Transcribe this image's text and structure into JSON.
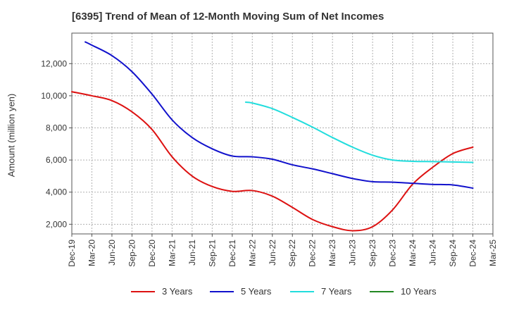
{
  "chart_data": {
    "type": "line",
    "title": "[6395]  Trend of Mean of 12-Month Moving Sum of Net Incomes",
    "ylabel": "Amount (million yen)",
    "xlabel": "",
    "ylim": [
      1400,
      13900
    ],
    "yticks": [
      2000,
      4000,
      6000,
      8000,
      10000,
      12000
    ],
    "ytick_labels": [
      "2,000",
      "4,000",
      "6,000",
      "8,000",
      "10,000",
      "12,000"
    ],
    "x_categories": [
      "Dec-19",
      "Mar-20",
      "Jun-20",
      "Sep-20",
      "Dec-20",
      "Mar-21",
      "Jun-21",
      "Sep-21",
      "Dec-21",
      "Mar-22",
      "Jun-22",
      "Sep-22",
      "Dec-22",
      "Mar-23",
      "Jun-23",
      "Sep-23",
      "Dec-23",
      "Mar-24",
      "Jun-24",
      "Sep-24",
      "Dec-24",
      "Mar-25"
    ],
    "grid": true,
    "legend_position": "bottom",
    "series": [
      {
        "name": "3 Years",
        "color": "#dd1111",
        "points": [
          [
            0,
            10250
          ],
          [
            1,
            10000
          ],
          [
            2,
            9700
          ],
          [
            3,
            9000
          ],
          [
            4,
            7900
          ],
          [
            5,
            6200
          ],
          [
            6,
            5000
          ],
          [
            7,
            4350
          ],
          [
            8,
            4050
          ],
          [
            9,
            4100
          ],
          [
            10,
            3750
          ],
          [
            11,
            3050
          ],
          [
            12,
            2300
          ],
          [
            13,
            1850
          ],
          [
            14,
            1600
          ],
          [
            15,
            1850
          ],
          [
            16,
            2900
          ],
          [
            17,
            4500
          ],
          [
            18,
            5550
          ],
          [
            19,
            6400
          ],
          [
            20,
            6800
          ]
        ]
      },
      {
        "name": "5 Years",
        "color": "#1111cc",
        "points": [
          [
            0.67,
            13350
          ],
          [
            1,
            13150
          ],
          [
            2,
            12500
          ],
          [
            3,
            11500
          ],
          [
            4,
            10100
          ],
          [
            5,
            8500
          ],
          [
            6,
            7400
          ],
          [
            7,
            6700
          ],
          [
            8,
            6250
          ],
          [
            9,
            6200
          ],
          [
            10,
            6050
          ],
          [
            11,
            5700
          ],
          [
            12,
            5450
          ],
          [
            13,
            5150
          ],
          [
            14,
            4850
          ],
          [
            15,
            4650
          ],
          [
            16,
            4620
          ],
          [
            17,
            4550
          ],
          [
            18,
            4480
          ],
          [
            19,
            4450
          ],
          [
            20,
            4250
          ]
        ]
      },
      {
        "name": "7 Years",
        "color": "#22dddd",
        "points": [
          [
            8.67,
            9600
          ],
          [
            9,
            9550
          ],
          [
            10,
            9200
          ],
          [
            11,
            8650
          ],
          [
            12,
            8050
          ],
          [
            13,
            7400
          ],
          [
            14,
            6800
          ],
          [
            15,
            6300
          ],
          [
            16,
            6000
          ],
          [
            17,
            5920
          ],
          [
            18,
            5900
          ],
          [
            19,
            5880
          ],
          [
            20,
            5850
          ]
        ]
      },
      {
        "name": "10 Years",
        "color": "#228822",
        "points": []
      }
    ]
  }
}
